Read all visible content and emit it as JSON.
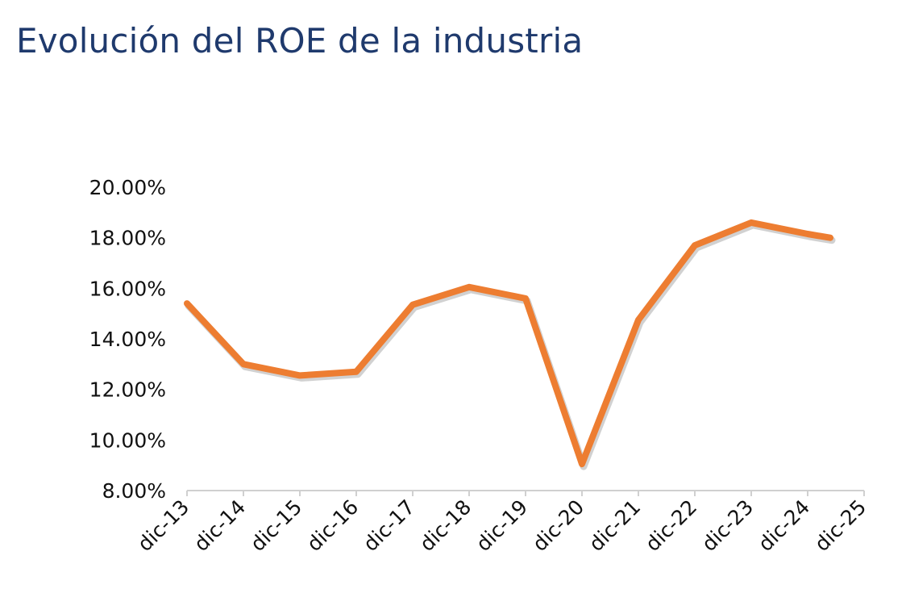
{
  "chart_data": {
    "type": "line",
    "title": "Evolución del ROE de la industria",
    "xlabel": "",
    "ylabel": "",
    "categories": [
      "dic-13",
      "dic-14",
      "dic-15",
      "dic-16",
      "dic-17",
      "dic-18",
      "dic-19",
      "dic-20",
      "dic-21",
      "dic-22",
      "dic-23",
      "dic-24",
      "dic-25"
    ],
    "y_ticks": [
      "8.00%",
      "10.00%",
      "12.00%",
      "14.00%",
      "16.00%",
      "18.00%",
      "20.00%"
    ],
    "ylim": [
      8,
      20
    ],
    "grid": false,
    "legend": "none",
    "series": [
      {
        "color": "#ed7d31",
        "points": [
          {
            "x": 0,
            "y": 15.4
          },
          {
            "x": 1,
            "y": 13.0
          },
          {
            "x": 2,
            "y": 12.55
          },
          {
            "x": 3,
            "y": 12.7
          },
          {
            "x": 4,
            "y": 15.35
          },
          {
            "x": 5,
            "y": 16.05
          },
          {
            "x": 6,
            "y": 15.6
          },
          {
            "x": 7,
            "y": 9.05
          },
          {
            "x": 8,
            "y": 14.75
          },
          {
            "x": 9,
            "y": 17.7
          },
          {
            "x": 10,
            "y": 18.6
          },
          {
            "x": 11,
            "y": 18.15
          },
          {
            "x": 11.4,
            "y": 18.0
          }
        ]
      }
    ]
  }
}
